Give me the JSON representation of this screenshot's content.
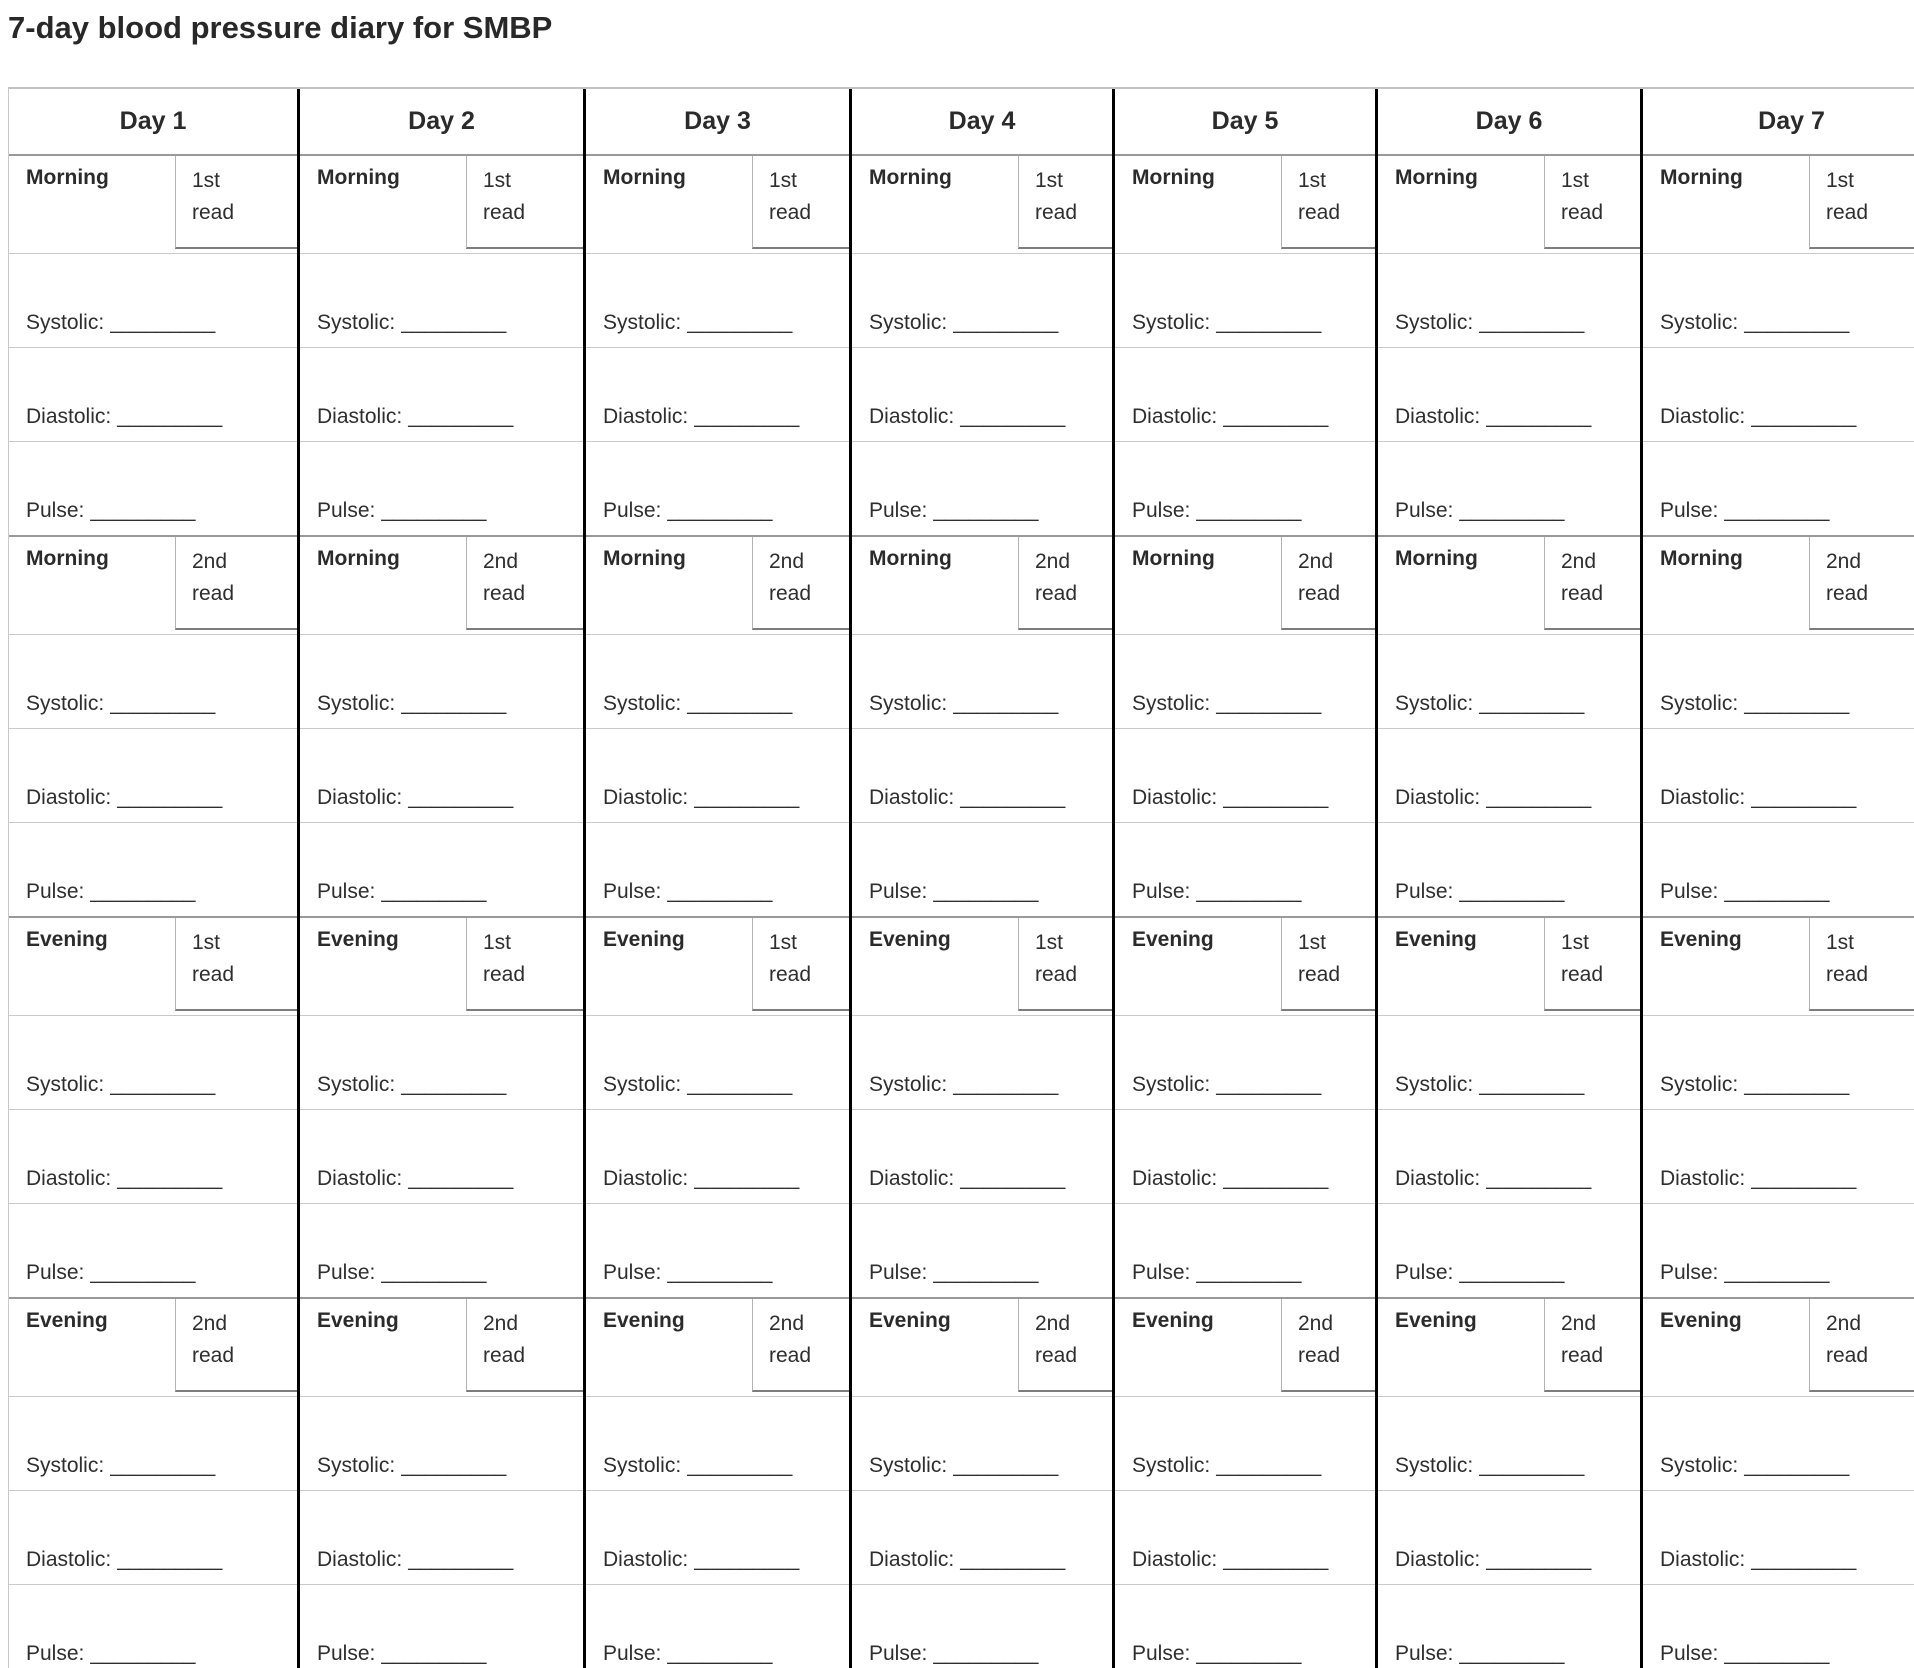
{
  "title": "7-day blood pressure diary for SMBP",
  "table": {
    "days": [
      {
        "label": "Day 1"
      },
      {
        "label": "Day 2"
      },
      {
        "label": "Day 3"
      },
      {
        "label": "Day 4"
      },
      {
        "label": "Day 5"
      },
      {
        "label": "Day 6"
      },
      {
        "label": "Day 7"
      }
    ],
    "sections": [
      {
        "period": "Morning",
        "read": "1st read"
      },
      {
        "period": "Morning",
        "read": "2nd read"
      },
      {
        "period": "Evening",
        "read": "1st read"
      },
      {
        "period": "Evening",
        "read": "2nd read"
      }
    ],
    "fields": [
      {
        "label": "Systolic:",
        "blank": "_________"
      },
      {
        "label": "Diastolic:",
        "blank": "_________"
      },
      {
        "label": "Pulse:",
        "blank": "_________"
      }
    ]
  },
  "colors": {
    "text": "#2b2b2b",
    "row_border": "#c9c9c9",
    "section_border": "#999999",
    "read_box_border": "#7d7d7d",
    "day_divider": "#000000"
  }
}
